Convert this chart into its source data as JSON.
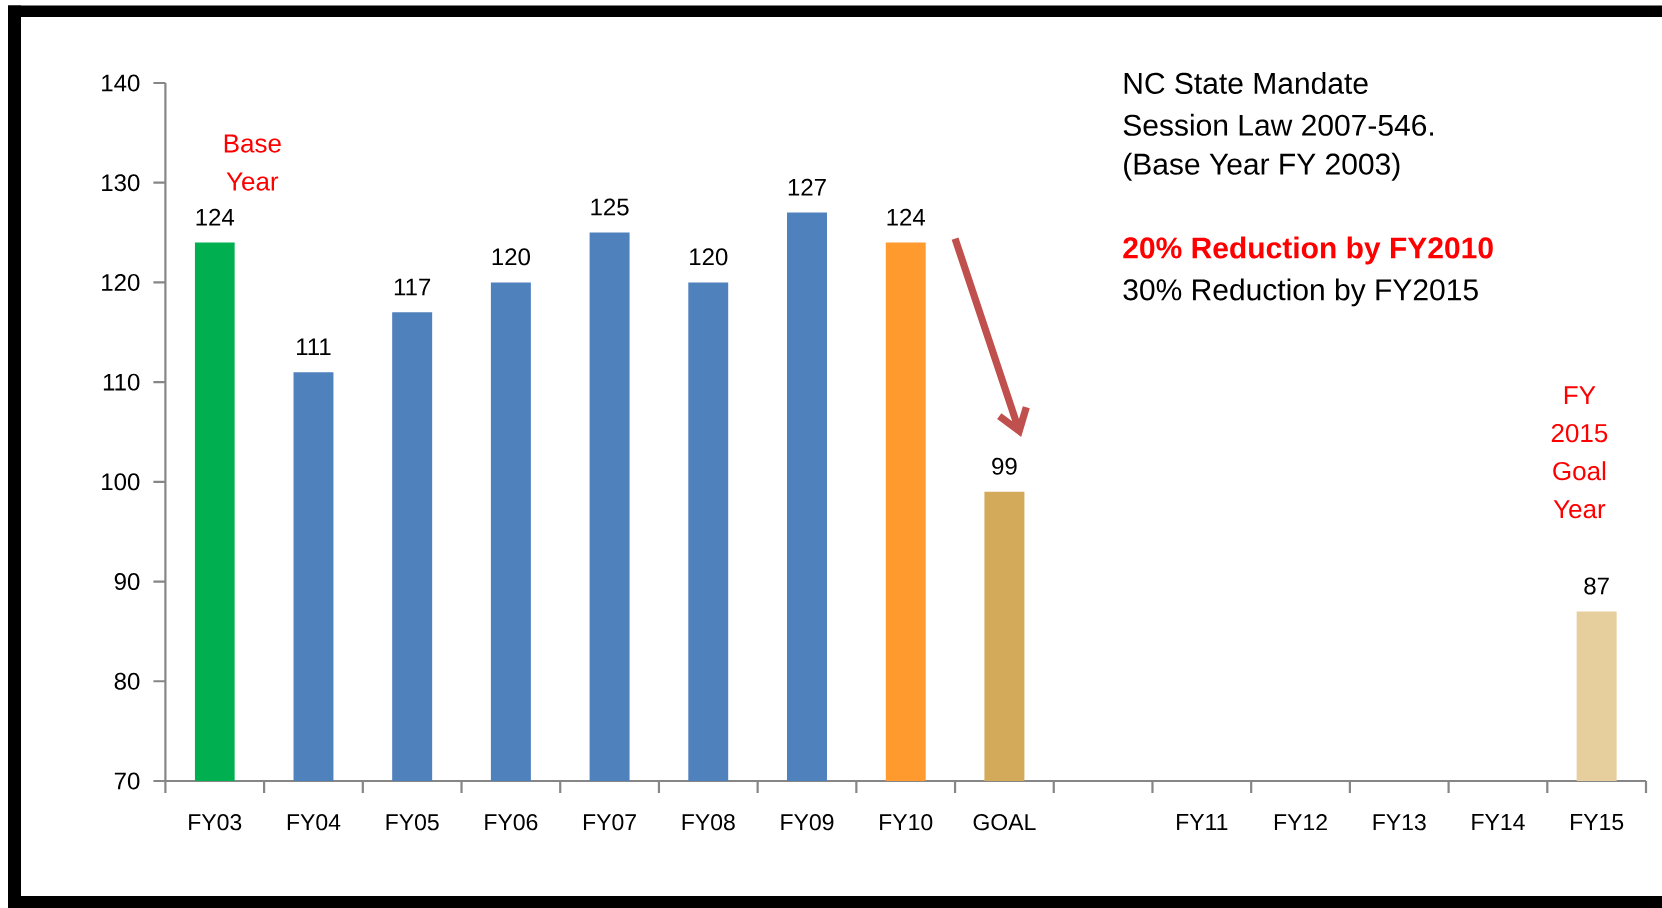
{
  "chart_data": {
    "type": "bar",
    "categories": [
      "FY03",
      "FY04",
      "FY05",
      "FY06",
      "FY07",
      "FY08",
      "FY09",
      "FY10",
      "GOAL",
      null,
      "FY11",
      "FY12",
      "FY13",
      "FY14",
      "FY15"
    ],
    "values": [
      124,
      111,
      117,
      120,
      125,
      120,
      127,
      124,
      99,
      null,
      null,
      null,
      null,
      null,
      87
    ],
    "colors": [
      "#00b050",
      "#4f81bd",
      "#4f81bd",
      "#4f81bd",
      "#4f81bd",
      "#4f81bd",
      "#4f81bd",
      "#ff9a2e",
      "#d2aa5a",
      null,
      null,
      null,
      null,
      null,
      "#e6cf9c"
    ],
    "ylim": [
      70,
      140
    ],
    "yticks": [
      70,
      80,
      90,
      100,
      110,
      120,
      130,
      140
    ],
    "data_labels": true,
    "annotations": [
      "Base Year",
      "FY 2015 Goal Year",
      "NC State Mandate",
      "Session Law 2007-546.",
      "(Base Year  FY 2003)",
      "20% Reduction by FY2010",
      "30% Reduction by FY2015"
    ]
  }
}
